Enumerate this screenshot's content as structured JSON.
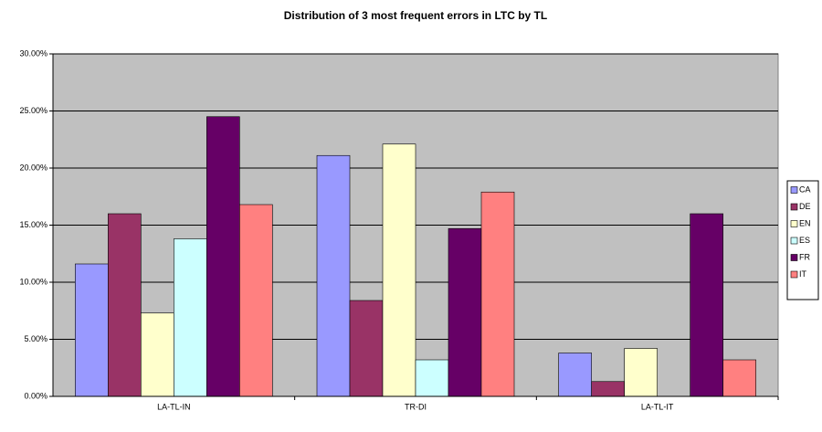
{
  "chart_data": {
    "type": "bar",
    "title": "Distribution of 3 most frequent errors in LTC by TL",
    "categories": [
      "LA-TL-IN",
      "TR-DI",
      "LA-TL-IT"
    ],
    "series": [
      {
        "name": "CA",
        "color": "#9999ff",
        "values": [
          11.6,
          21.1,
          3.8
        ]
      },
      {
        "name": "DE",
        "color": "#993366",
        "values": [
          16.0,
          8.4,
          1.3
        ]
      },
      {
        "name": "EN",
        "color": "#ffffcc",
        "values": [
          7.3,
          22.1,
          4.2
        ]
      },
      {
        "name": "ES",
        "color": "#ccffff",
        "values": [
          13.8,
          3.2,
          0
        ]
      },
      {
        "name": "FR",
        "color": "#660066",
        "values": [
          24.5,
          14.7,
          16.0
        ]
      },
      {
        "name": "IT",
        "color": "#ff8080",
        "values": [
          16.8,
          17.9,
          3.2
        ]
      }
    ],
    "ylim": [
      0,
      30
    ],
    "yticks": [
      {
        "value": 0,
        "label": "0.00%"
      },
      {
        "value": 5,
        "label": "5.00%"
      },
      {
        "value": 10,
        "label": "10.00%"
      },
      {
        "value": 15,
        "label": "15.00%"
      },
      {
        "value": 20,
        "label": "20.00%"
      },
      {
        "value": 25,
        "label": "25.00%"
      },
      {
        "value": 30,
        "label": "30.00%"
      }
    ],
    "grid": true,
    "legend": "right"
  }
}
